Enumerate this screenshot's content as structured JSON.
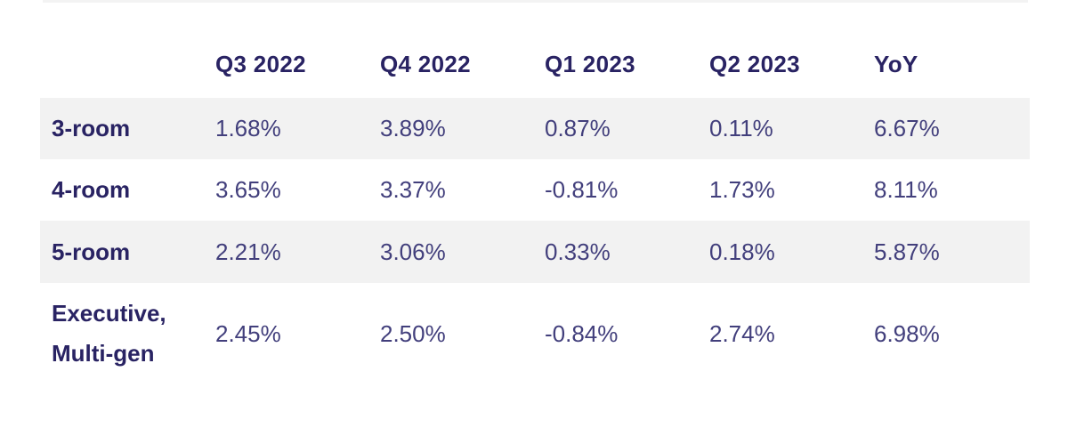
{
  "colors": {
    "heading_text": "#292363",
    "value_text": "#423f7c",
    "row_band": "#f2f2f2",
    "top_divider": "#f3f3f3",
    "background": "#ffffff"
  },
  "table": {
    "columns": [
      "",
      "Q3 2022",
      "Q4 2022",
      "Q1 2023",
      "Q2 2023",
      "YoY"
    ],
    "rows": [
      {
        "label": "3-room",
        "values": [
          "1.68%",
          "3.89%",
          "0.87%",
          "0.11%",
          "6.67%"
        ]
      },
      {
        "label": "4-room",
        "values": [
          "3.65%",
          "3.37%",
          "-0.81%",
          "1.73%",
          "8.11%"
        ]
      },
      {
        "label": "5-room",
        "values": [
          "2.21%",
          "3.06%",
          "0.33%",
          "0.18%",
          "5.87%"
        ]
      },
      {
        "label": "Executive, Multi-gen",
        "values": [
          "2.45%",
          "2.50%",
          "-0.84%",
          "2.74%",
          "6.98%"
        ]
      }
    ]
  },
  "chart_data": {
    "type": "table",
    "title": "",
    "categories": [
      "Q3 2022",
      "Q4 2022",
      "Q1 2023",
      "Q2 2023",
      "YoY"
    ],
    "series": [
      {
        "name": "3-room",
        "values": [
          1.68,
          3.89,
          0.87,
          0.11,
          6.67
        ]
      },
      {
        "name": "4-room",
        "values": [
          3.65,
          3.37,
          -0.81,
          1.73,
          8.11
        ]
      },
      {
        "name": "5-room",
        "values": [
          2.21,
          3.06,
          0.33,
          0.18,
          5.87
        ]
      },
      {
        "name": "Executive, Multi-gen",
        "values": [
          2.45,
          2.5,
          -0.84,
          2.74,
          6.98
        ]
      }
    ],
    "unit": "%",
    "layout": {
      "row_striping": "odd-rows-gray",
      "values_alignment": "left",
      "grid": "off"
    }
  }
}
